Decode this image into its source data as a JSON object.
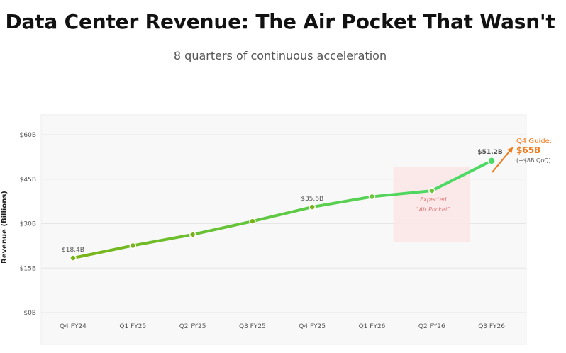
{
  "header": {
    "title": "Data Center Revenue: The Air Pocket That Wasn't",
    "subtitle": "8 quarters of continuous acceleration"
  },
  "colors": {
    "line_start": "#7ab317",
    "line_end": "#4cd964",
    "highlight": "#4cd964",
    "guide": "#f07a1a",
    "air_pocket_fill": "#fbe6e6",
    "air_pocket_text": "#e07a7a",
    "plot_bg": "#f8f8f8",
    "grid": "#e6e6e6"
  },
  "chart_data": {
    "type": "line",
    "title": "Data Center Revenue: The Air Pocket That Wasn't",
    "subtitle": "8 quarters of continuous acceleration",
    "xlabel": "",
    "ylabel": "Revenue (Billions)",
    "categories": [
      "Q4 FY24",
      "Q1 FY25",
      "Q2 FY25",
      "Q3 FY25",
      "Q4 FY25",
      "Q1 FY26",
      "Q2 FY26",
      "Q3 FY26"
    ],
    "values": [
      18.4,
      22.6,
      26.3,
      30.8,
      35.6,
      39.1,
      41.1,
      51.2
    ],
    "ylim": [
      0,
      60
    ],
    "yticks": [
      0,
      15,
      30,
      45,
      60
    ],
    "ytick_labels": [
      "$0B",
      "$15B",
      "$30B",
      "$45B",
      "$60B"
    ],
    "grid": true,
    "data_labels": [
      {
        "category": "Q4 FY24",
        "text": "$18.4B"
      },
      {
        "category": "Q4 FY25",
        "text": "$35.6B"
      },
      {
        "category": "Q3 FY26",
        "text": "$51.2B"
      }
    ],
    "annotations": {
      "air_pocket": {
        "line1": "Expected",
        "line2": "\"Air Pocket\"",
        "category": "Q2 FY26"
      },
      "guide": {
        "label": "Q4 Guide:",
        "value": "$65B",
        "note": "(+$8B QoQ)"
      }
    }
  }
}
